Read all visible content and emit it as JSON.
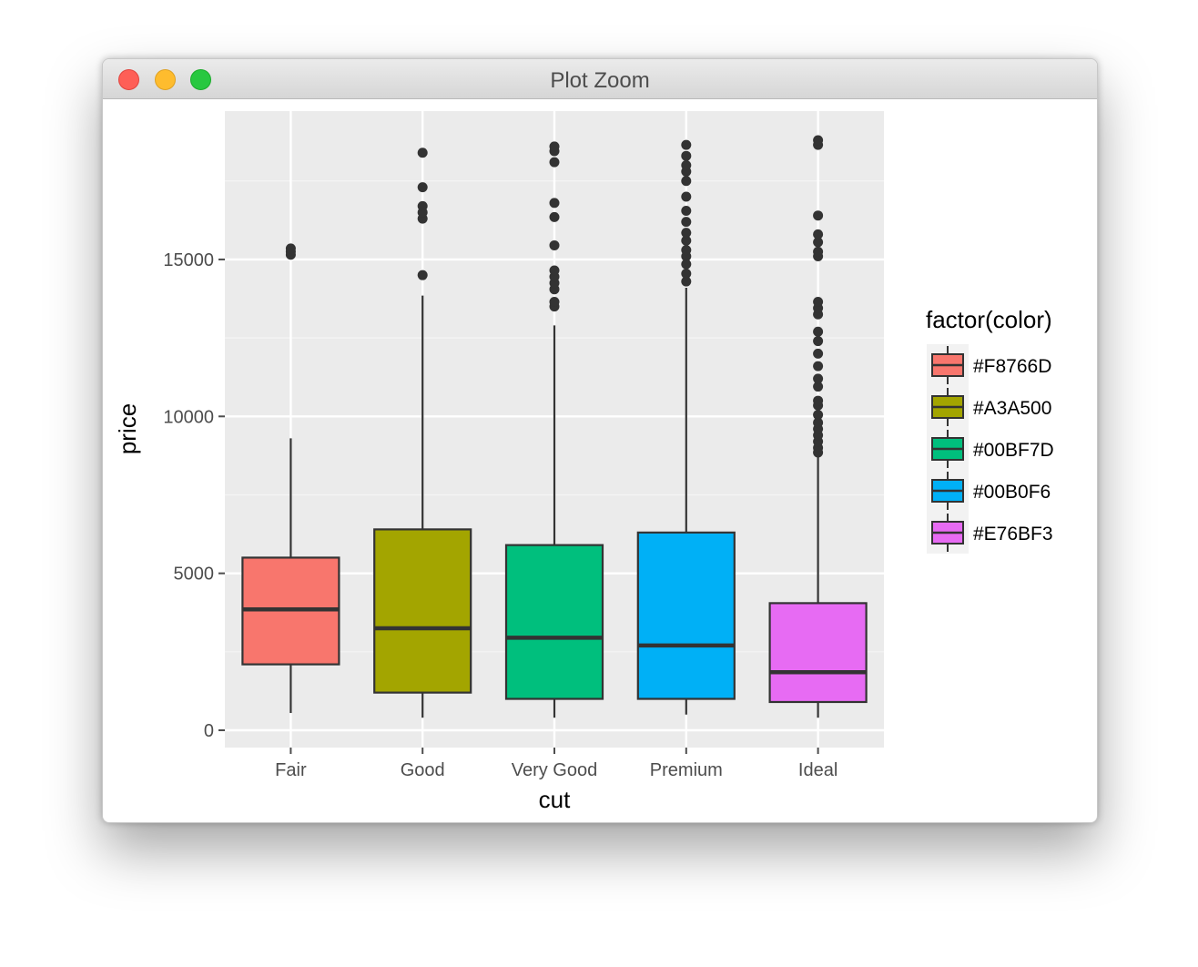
{
  "window": {
    "title": "Plot Zoom",
    "controls": [
      "close",
      "minimize",
      "maximize"
    ]
  },
  "chart_data": {
    "type": "box",
    "xlabel": "cut",
    "ylabel": "price",
    "ylim": [
      -800,
      19000
    ],
    "yticks": [
      0,
      5000,
      10000,
      15000
    ],
    "grid": true,
    "legend": {
      "title": "factor(color)",
      "position": "right"
    },
    "series": [
      {
        "name": "#F8766D",
        "category": "Fair",
        "color": "#F8766D",
        "whisker_low": 550,
        "q1": 2100,
        "median": 3850,
        "q3": 5500,
        "whisker_high": 9300,
        "outliers": [
          15150,
          15250,
          15350
        ]
      },
      {
        "name": "#A3A500",
        "category": "Good",
        "color": "#A3A500",
        "whisker_low": 400,
        "q1": 1200,
        "median": 3250,
        "q3": 6400,
        "whisker_high": 13850,
        "outliers": [
          14500,
          16300,
          16500,
          16700,
          17300,
          18400
        ]
      },
      {
        "name": "#00BF7D",
        "category": "Very Good",
        "color": "#00BF7D",
        "whisker_low": 400,
        "q1": 1000,
        "median": 2950,
        "q3": 5900,
        "whisker_high": 12900,
        "outliers": [
          13500,
          13650,
          14050,
          14250,
          14450,
          14650,
          15450,
          16350,
          16800,
          18100,
          18450,
          18600
        ]
      },
      {
        "name": "#00B0F6",
        "category": "Premium",
        "color": "#00B0F6",
        "whisker_low": 500,
        "q1": 1000,
        "median": 2700,
        "q3": 6300,
        "whisker_high": 14100,
        "outliers": [
          14300,
          14550,
          14850,
          15100,
          15300,
          15600,
          15850,
          16200,
          16550,
          17000,
          17500,
          17800,
          18000,
          18300,
          18650
        ]
      },
      {
        "name": "#E76BF3",
        "category": "Ideal",
        "color": "#E76BF3",
        "whisker_low": 400,
        "q1": 900,
        "median": 1850,
        "q3": 4050,
        "whisker_high": 8750,
        "outliers": [
          8850,
          9000,
          9200,
          9400,
          9600,
          9800,
          10050,
          10350,
          10500,
          10950,
          11200,
          11600,
          12000,
          12400,
          12700,
          13250,
          13450,
          13650,
          15100,
          15250,
          15550,
          15800,
          16400,
          18650,
          18800
        ]
      }
    ]
  }
}
